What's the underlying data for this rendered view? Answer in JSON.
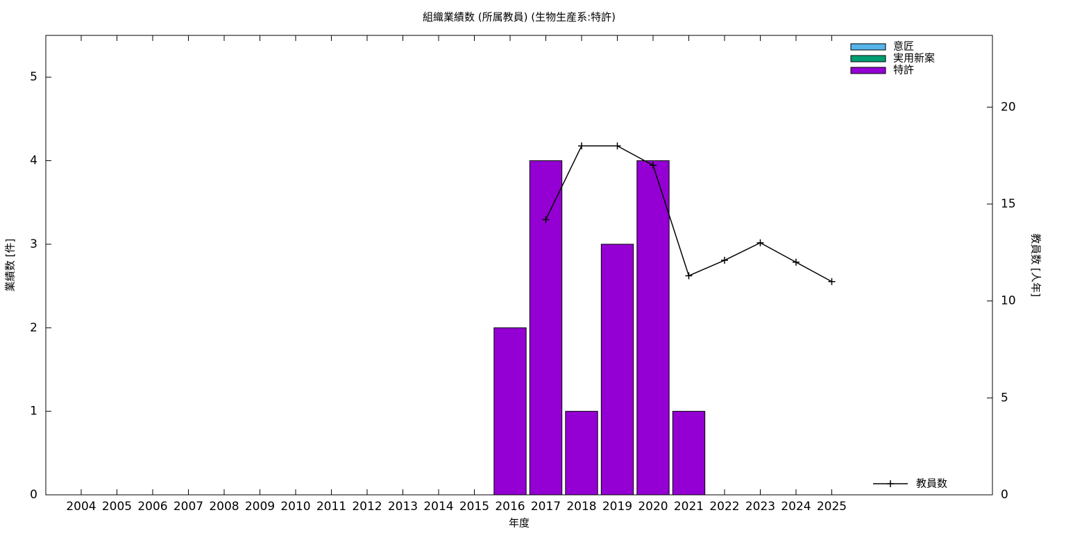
{
  "chart_data": {
    "type": "bar",
    "title": "組織業績数 (所属教員) (生物生産系:特許)",
    "xlabel": "年度",
    "ylabel": "業績数 [件]",
    "y2label": "教員数 [人年]",
    "categories": [
      "2004",
      "2005",
      "2006",
      "2007",
      "2008",
      "2009",
      "2010",
      "2011",
      "2012",
      "2013",
      "2014",
      "2015",
      "2016",
      "2017",
      "2018",
      "2019",
      "2020",
      "2021",
      "2022",
      "2023",
      "2024",
      "2025"
    ],
    "stacked": true,
    "series": [
      {
        "name": "意匠",
        "color": "#56b4e9",
        "values": [
          0,
          0,
          0,
          0,
          0,
          0,
          0,
          0,
          0,
          0,
          0,
          0,
          0,
          0,
          0,
          0,
          0,
          0,
          0,
          0,
          0,
          0
        ]
      },
      {
        "name": "実用新案",
        "color": "#009e73",
        "values": [
          0,
          0,
          0,
          0,
          0,
          0,
          0,
          0,
          0,
          0,
          0,
          0,
          0,
          0,
          0,
          0,
          0,
          0,
          0,
          0,
          0,
          0
        ]
      },
      {
        "name": "特許",
        "color": "#9400d3",
        "values": [
          0,
          0,
          0,
          0,
          0,
          0,
          0,
          0,
          0,
          0,
          0,
          0,
          2,
          4,
          1,
          3,
          4,
          1,
          0,
          0,
          0,
          0
        ]
      },
      {
        "name": "教員数",
        "type": "line",
        "axis": "y2",
        "color": "#000000",
        "values": [
          null,
          null,
          null,
          null,
          null,
          null,
          null,
          null,
          null,
          null,
          null,
          null,
          null,
          14.2,
          18.0,
          18.0,
          17.0,
          11.3,
          12.1,
          13.0,
          12.0,
          11.0
        ]
      }
    ],
    "ylim": [
      0,
      5.5
    ],
    "yticks": [
      0,
      1,
      2,
      3,
      4,
      5
    ],
    "y2lim": [
      0,
      23.7
    ],
    "y2ticks": [
      0,
      5,
      10,
      15,
      20
    ],
    "legend": "top-right",
    "line_legend": "bottom-right"
  }
}
